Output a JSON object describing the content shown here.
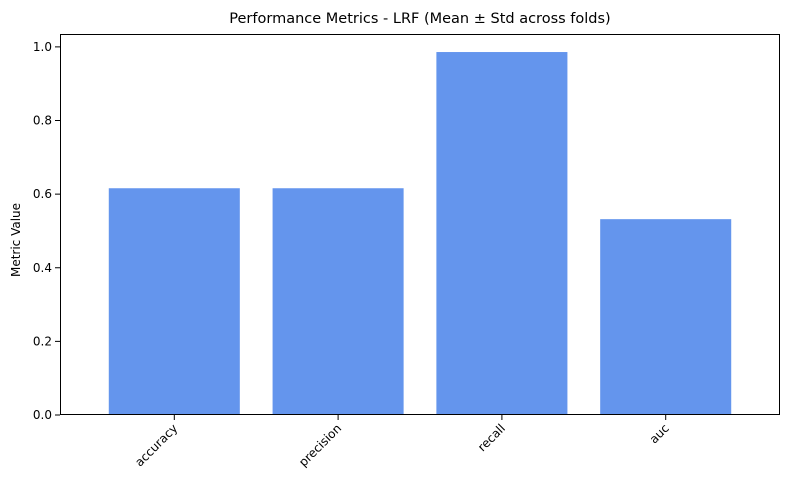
{
  "chart_data": {
    "type": "bar",
    "title": "Performance Metrics - LRF (Mean ± Std across folds)",
    "xlabel": "",
    "ylabel": "Metric Value",
    "categories": [
      "accuracy",
      "precision",
      "recall",
      "auc"
    ],
    "values": [
      0.616,
      0.616,
      0.986,
      0.532
    ],
    "ylim": [
      0,
      1.035
    ],
    "yticks": [
      0.0,
      0.2,
      0.4,
      0.6,
      0.8,
      1.0
    ],
    "ytick_labels": [
      "0.0",
      "0.2",
      "0.4",
      "0.6",
      "0.8",
      "1.0"
    ],
    "bar_color": "#6495ED",
    "xtick_rotation_deg": 45,
    "grid": false,
    "legend": "none"
  }
}
